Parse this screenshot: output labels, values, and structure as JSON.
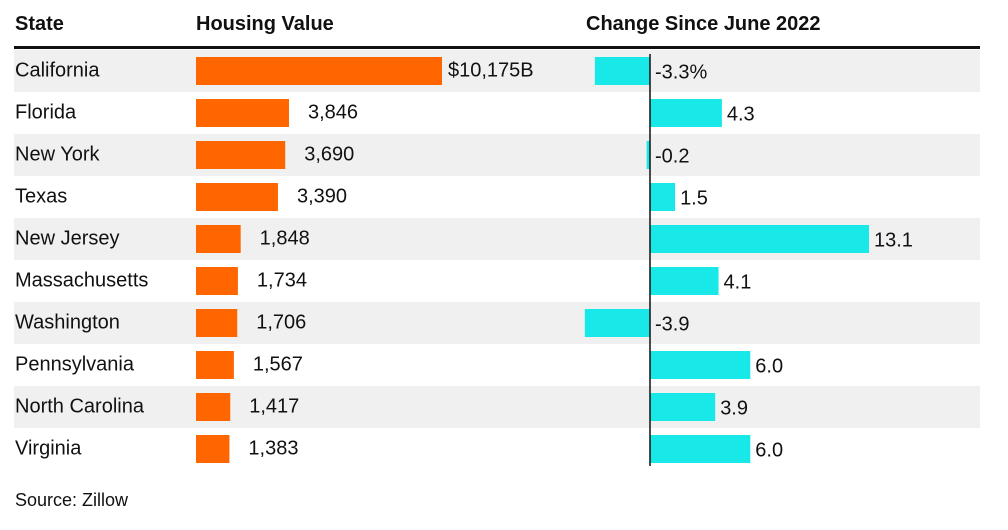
{
  "headers": {
    "state": "State",
    "value": "Housing Value",
    "change": "Change Since June 2022"
  },
  "source": "Source: Zillow",
  "colors": {
    "value_bar": "#ff6600",
    "change_bar": "#19e8e8",
    "stripe": "#f0f0f0",
    "text": "#111111"
  },
  "chart_data": {
    "type": "bar",
    "categories": [
      "California",
      "Florida",
      "New York",
      "Texas",
      "New Jersey",
      "Massachusetts",
      "Washington",
      "Pennsylvania",
      "North Carolina",
      "Virginia"
    ],
    "series": [
      {
        "name": "Housing Value",
        "values": [
          10175,
          3846,
          3690,
          3390,
          1848,
          1734,
          1706,
          1567,
          1417,
          1383
        ],
        "labels": [
          "$10,175B",
          "3,846",
          "3,690",
          "3,390",
          "1,848",
          "1,734",
          "1,706",
          "1,567",
          "1,417",
          "1,383"
        ]
      },
      {
        "name": "Change Since June 2022",
        "values": [
          -3.3,
          4.3,
          -0.2,
          1.5,
          13.1,
          4.1,
          -3.9,
          6.0,
          3.9,
          6.0
        ],
        "labels": [
          "-3.3%",
          "4.3",
          "-0.2",
          "1.5",
          "13.1",
          "4.1",
          "-3.9",
          "6.0",
          "3.9",
          "6.0"
        ]
      }
    ],
    "grid": false
  }
}
